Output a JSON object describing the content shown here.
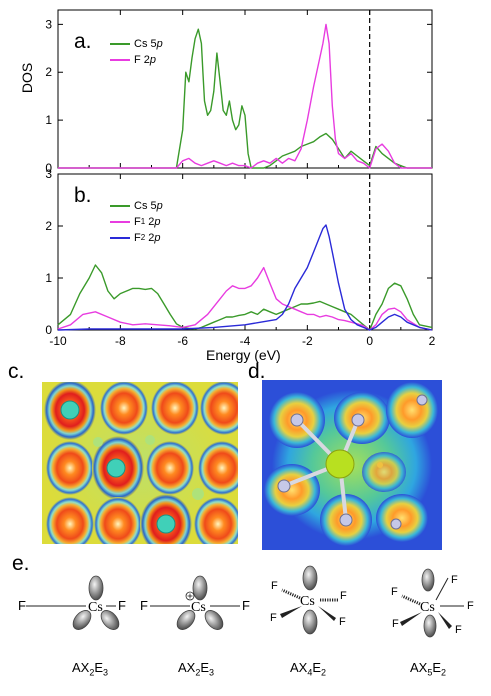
{
  "figure": {
    "panel_labels": [
      "a.",
      "b.",
      "c.",
      "d.",
      "e."
    ],
    "ylabel_a": "DOS",
    "xlabel": "Energy (eV)",
    "x_ticks": [
      "-10",
      "-8",
      "-6",
      "-4",
      "-2",
      "0",
      "2"
    ],
    "y_ticks_a": [
      "0",
      "1",
      "2",
      "3"
    ],
    "y_ticks_b": [
      "0",
      "1",
      "2",
      "3"
    ],
    "legend_a": [
      {
        "text": "Cs 5",
        "ital": "p",
        "color": "#3a9a2a"
      },
      {
        "text": "F 2",
        "ital": "p",
        "color": "#e83ce0"
      }
    ],
    "legend_b": [
      {
        "text": "Cs 5",
        "ital": "p",
        "color": "#3a9a2a"
      },
      {
        "text": "F",
        "sub": "1",
        "rest": " 2",
        "ital": "p",
        "color": "#e83ce0"
      },
      {
        "text": "F",
        "sub": "2",
        "rest": " 2",
        "ital": "p",
        "color": "#2a2ad8"
      }
    ],
    "structure_labels": {
      "f": "F",
      "cs": "Cs",
      "formulas": [
        {
          "main": "AX",
          "s1": "2",
          "mid": "E",
          "s2": "3"
        },
        {
          "main": "AX",
          "s1": "2",
          "mid": "E",
          "s2": "3"
        },
        {
          "main": "AX",
          "s1": "4",
          "mid": "E",
          "s2": "2"
        },
        {
          "main": "AX",
          "s1": "5",
          "mid": "E",
          "s2": "2"
        }
      ]
    }
  },
  "chart_data": [
    {
      "type": "line",
      "title": "",
      "xlabel": "",
      "ylabel": "DOS",
      "xlim": [
        -10,
        2
      ],
      "ylim": [
        0,
        3.3
      ],
      "fermi_level_x": 0,
      "series": [
        {
          "name": "Cs 5p",
          "color": "#3a9a2a",
          "x": [
            -10,
            -6.2,
            -6,
            -5.9,
            -5.8,
            -5.7,
            -5.6,
            -5.5,
            -5.4,
            -5.35,
            -5.3,
            -5.2,
            -5.1,
            -5.0,
            -4.9,
            -4.8,
            -4.7,
            -4.6,
            -4.5,
            -4.4,
            -4.3,
            -4.2,
            -4.1,
            -4.0,
            -3.9,
            -3.8,
            -3.6,
            -3.4,
            -3.2,
            -3.0,
            -2.8,
            -2.6,
            -2.4,
            -2.2,
            -2.0,
            -1.8,
            -1.6,
            -1.4,
            -1.2,
            -1.0,
            -0.8,
            -0.6,
            -0.4,
            -0.2,
            0,
            0.2,
            0.4,
            0.6,
            0.8,
            1.0,
            1.2,
            2
          ],
          "y": [
            0,
            0,
            0.8,
            2.0,
            1.8,
            2.3,
            2.7,
            2.9,
            2.6,
            2.0,
            1.4,
            1.1,
            1.2,
            1.6,
            2.4,
            1.8,
            1.2,
            1.1,
            1.4,
            1.0,
            0.8,
            0.9,
            1.3,
            1.1,
            0.3,
            0,
            0,
            0,
            0.05,
            0.15,
            0.25,
            0.3,
            0.35,
            0.45,
            0.5,
            0.55,
            0.65,
            0.72,
            0.6,
            0.4,
            0.2,
            0.35,
            0.25,
            0.15,
            0.05,
            0.45,
            0.3,
            0.2,
            0.1,
            0.05,
            0,
            0
          ]
        },
        {
          "name": "F 2p",
          "color": "#e83ce0",
          "x": [
            -10,
            -6.2,
            -6.0,
            -5.8,
            -5.6,
            -5.4,
            -5.2,
            -5.0,
            -4.8,
            -4.6,
            -4.4,
            -4.2,
            -4.0,
            -3.8,
            -3.6,
            -3.4,
            -3.2,
            -3.0,
            -2.8,
            -2.6,
            -2.4,
            -2.2,
            -2.0,
            -1.8,
            -1.6,
            -1.5,
            -1.4,
            -1.3,
            -1.2,
            -1.1,
            -1.0,
            -0.8,
            -0.6,
            -0.4,
            -0.2,
            0,
            0.2,
            0.4,
            0.6,
            0.8,
            1.0,
            2
          ],
          "y": [
            0,
            0,
            0.15,
            0.2,
            0.1,
            0.05,
            0.1,
            0.15,
            0.1,
            0.05,
            0.1,
            0.05,
            0.05,
            0,
            0.1,
            0.15,
            0.1,
            0.2,
            0.1,
            0.2,
            0.15,
            0.4,
            1.0,
            1.7,
            2.3,
            2.6,
            3.0,
            2.6,
            1.3,
            0.6,
            0.3,
            0.2,
            0.3,
            0.15,
            0.1,
            0,
            0.4,
            0.5,
            0.35,
            0.1,
            0,
            0
          ]
        }
      ]
    },
    {
      "type": "line",
      "title": "",
      "xlabel": "Energy (eV)",
      "ylabel": "",
      "xlim": [
        -10,
        2
      ],
      "ylim": [
        0,
        3
      ],
      "fermi_level_x": 0,
      "series": [
        {
          "name": "Cs 5p",
          "color": "#3a9a2a",
          "x": [
            -10,
            -9.6,
            -9.3,
            -9.0,
            -8.8,
            -8.6,
            -8.4,
            -8.2,
            -8.0,
            -7.8,
            -7.6,
            -7.4,
            -7.2,
            -7.0,
            -6.8,
            -6.6,
            -6.4,
            -6.2,
            -6.0,
            -5.8,
            -5.6,
            -5.4,
            -5.2,
            -5.0,
            -4.8,
            -4.6,
            -4.4,
            -4.2,
            -4.0,
            -3.8,
            -3.6,
            -3.4,
            -3.2,
            -3.0,
            -2.8,
            -2.6,
            -2.4,
            -2.2,
            -2.0,
            -1.8,
            -1.6,
            -1.4,
            -1.2,
            -1.0,
            -0.8,
            -0.6,
            -0.4,
            -0.2,
            0,
            0.2,
            0.4,
            0.6,
            0.8,
            1.0,
            1.2,
            1.4,
            1.6,
            2
          ],
          "y": [
            0.1,
            0.3,
            0.7,
            1.0,
            1.25,
            1.1,
            0.75,
            0.6,
            0.7,
            0.75,
            0.8,
            0.8,
            0.78,
            0.8,
            0.7,
            0.5,
            0.3,
            0.12,
            0.05,
            0.03,
            0.02,
            0.05,
            0.1,
            0.15,
            0.2,
            0.25,
            0.25,
            0.28,
            0.3,
            0.35,
            0.3,
            0.4,
            0.35,
            0.3,
            0.35,
            0.4,
            0.45,
            0.5,
            0.5,
            0.52,
            0.55,
            0.5,
            0.45,
            0.4,
            0.35,
            0.3,
            0.2,
            0.1,
            0,
            0.3,
            0.5,
            0.8,
            0.9,
            0.85,
            0.6,
            0.3,
            0.1,
            0.05
          ]
        },
        {
          "name": "F1 2p",
          "color": "#e83ce0",
          "x": [
            -10,
            -9.6,
            -9.2,
            -8.8,
            -8.4,
            -8.0,
            -7.6,
            -7.2,
            -6.8,
            -6.4,
            -6.0,
            -5.6,
            -5.2,
            -4.8,
            -4.6,
            -4.4,
            -4.2,
            -4.0,
            -3.8,
            -3.6,
            -3.4,
            -3.2,
            -3.0,
            -2.8,
            -2.6,
            -2.4,
            -2.2,
            -2.0,
            -1.8,
            -1.6,
            -1.4,
            -1.2,
            -1.0,
            -0.8,
            -0.6,
            -0.4,
            -0.2,
            0,
            0.2,
            0.4,
            0.6,
            0.8,
            1.0,
            1.2,
            1.6,
            2
          ],
          "y": [
            0.02,
            0.1,
            0.3,
            0.35,
            0.25,
            0.15,
            0.1,
            0.12,
            0.1,
            0.08,
            0.05,
            0.1,
            0.3,
            0.6,
            0.75,
            0.85,
            0.8,
            0.8,
            0.85,
            1.0,
            1.2,
            0.9,
            0.6,
            0.5,
            0.45,
            0.4,
            0.35,
            0.3,
            0.3,
            0.25,
            0.28,
            0.25,
            0.2,
            0.18,
            0.15,
            0.12,
            0.08,
            0,
            0.1,
            0.3,
            0.4,
            0.42,
            0.35,
            0.2,
            0.05,
            0
          ]
        },
        {
          "name": "F2 2p",
          "color": "#2a2ad8",
          "x": [
            -10,
            -9,
            -8,
            -7,
            -6,
            -5,
            -4,
            -3.5,
            -3.0,
            -2.8,
            -2.6,
            -2.4,
            -2.2,
            -2.0,
            -1.8,
            -1.6,
            -1.5,
            -1.4,
            -1.3,
            -1.2,
            -1.0,
            -0.8,
            -0.6,
            -0.4,
            -0.2,
            0,
            0.2,
            0.4,
            0.6,
            0.8,
            1.0,
            1.2,
            1.6,
            2
          ],
          "y": [
            0,
            0.02,
            0.02,
            0.02,
            0.02,
            0.05,
            0.1,
            0.15,
            0.2,
            0.3,
            0.5,
            0.8,
            1.0,
            1.2,
            1.5,
            1.8,
            1.95,
            2.02,
            1.8,
            1.5,
            0.9,
            0.4,
            0.2,
            0.1,
            0.05,
            0,
            0.05,
            0.15,
            0.25,
            0.3,
            0.25,
            0.15,
            0.05,
            0
          ]
        }
      ]
    }
  ]
}
